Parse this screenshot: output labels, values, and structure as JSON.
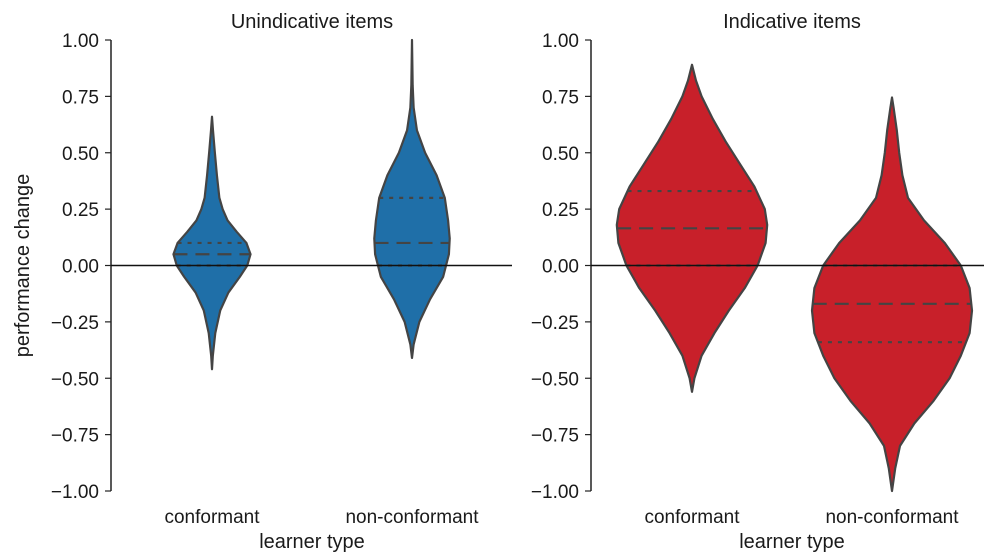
{
  "chart_data": [
    {
      "type": "violin",
      "title": "Unindicative items",
      "xlabel": "learner type",
      "ylabel": "performance change",
      "ylim": [
        -1.0,
        1.0
      ],
      "yticks": [
        "1.00",
        "0.75",
        "0.50",
        "0.25",
        "0.00",
        "−0.25",
        "−0.50",
        "−0.75",
        "−1.00"
      ],
      "ytick_values": [
        1.0,
        0.75,
        0.5,
        0.25,
        0.0,
        -0.25,
        -0.5,
        -0.75,
        -1.0
      ],
      "categories": [
        "conformant",
        "non-conformant"
      ],
      "color": "#1f6fa8",
      "zero_line": true,
      "violins": [
        {
          "category": "conformant",
          "min": -0.46,
          "max": 0.66,
          "quartiles": {
            "q1": 0.0,
            "median": 0.05,
            "q3": 0.1
          },
          "density": [
            [
              -0.46,
              0.0
            ],
            [
              -0.4,
              0.01
            ],
            [
              -0.3,
              0.04
            ],
            [
              -0.2,
              0.1
            ],
            [
              -0.12,
              0.2
            ],
            [
              -0.05,
              0.34
            ],
            [
              0.0,
              0.43
            ],
            [
              0.05,
              0.47
            ],
            [
              0.1,
              0.42
            ],
            [
              0.15,
              0.3
            ],
            [
              0.2,
              0.19
            ],
            [
              0.25,
              0.13
            ],
            [
              0.3,
              0.09
            ],
            [
              0.4,
              0.06
            ],
            [
              0.5,
              0.035
            ],
            [
              0.6,
              0.012
            ],
            [
              0.66,
              0.0
            ]
          ]
        },
        {
          "category": "non-conformant",
          "min": -0.41,
          "max": 1.0,
          "quartiles": {
            "q1": 0.0,
            "median": 0.1,
            "q3": 0.3
          },
          "density": [
            [
              -0.41,
              0.0
            ],
            [
              -0.35,
              0.02
            ],
            [
              -0.25,
              0.09
            ],
            [
              -0.15,
              0.22
            ],
            [
              -0.05,
              0.38
            ],
            [
              0.05,
              0.45
            ],
            [
              0.12,
              0.46
            ],
            [
              0.2,
              0.44
            ],
            [
              0.3,
              0.4
            ],
            [
              0.4,
              0.3
            ],
            [
              0.5,
              0.16
            ],
            [
              0.6,
              0.06
            ],
            [
              0.7,
              0.02
            ],
            [
              0.8,
              0.008
            ],
            [
              0.9,
              0.004
            ],
            [
              1.0,
              0.0
            ]
          ]
        }
      ]
    },
    {
      "type": "violin",
      "title": "Indicative items",
      "xlabel": "learner type",
      "ylabel": "",
      "ylim": [
        -1.0,
        1.0
      ],
      "yticks": [
        "1.00",
        "0.75",
        "0.50",
        "0.25",
        "0.00",
        "−0.25",
        "−0.50",
        "−0.75",
        "−1.00"
      ],
      "ytick_values": [
        1.0,
        0.75,
        0.5,
        0.25,
        0.0,
        -0.25,
        -0.5,
        -0.75,
        -1.0
      ],
      "categories": [
        "conformant",
        "non-conformant"
      ],
      "color": "#c8202a",
      "zero_line": true,
      "violins": [
        {
          "category": "conformant",
          "min": -0.56,
          "max": 0.89,
          "quartiles": {
            "q1": 0.0,
            "median": 0.165,
            "q3": 0.33
          },
          "density": [
            [
              -0.56,
              0.0
            ],
            [
              -0.5,
              0.03
            ],
            [
              -0.4,
              0.12
            ],
            [
              -0.3,
              0.28
            ],
            [
              -0.2,
              0.46
            ],
            [
              -0.1,
              0.66
            ],
            [
              0.0,
              0.82
            ],
            [
              0.1,
              0.92
            ],
            [
              0.18,
              0.94
            ],
            [
              0.25,
              0.91
            ],
            [
              0.35,
              0.78
            ],
            [
              0.45,
              0.6
            ],
            [
              0.55,
              0.42
            ],
            [
              0.65,
              0.26
            ],
            [
              0.75,
              0.12
            ],
            [
              0.82,
              0.05
            ],
            [
              0.89,
              0.0
            ]
          ]
        },
        {
          "category": "non-conformant",
          "min": -1.0,
          "max": 0.745,
          "quartiles": {
            "q1": -0.34,
            "median": -0.17,
            "q3": 0.0
          },
          "density": [
            [
              -1.0,
              0.0
            ],
            [
              -0.9,
              0.04
            ],
            [
              -0.8,
              0.1
            ],
            [
              -0.7,
              0.28
            ],
            [
              -0.6,
              0.52
            ],
            [
              -0.5,
              0.72
            ],
            [
              -0.4,
              0.86
            ],
            [
              -0.3,
              0.97
            ],
            [
              -0.2,
              1.0
            ],
            [
              -0.1,
              0.97
            ],
            [
              0.0,
              0.86
            ],
            [
              0.1,
              0.66
            ],
            [
              0.2,
              0.4
            ],
            [
              0.3,
              0.2
            ],
            [
              0.4,
              0.13
            ],
            [
              0.5,
              0.09
            ],
            [
              0.6,
              0.06
            ],
            [
              0.7,
              0.02
            ],
            [
              0.745,
              0.0
            ]
          ]
        }
      ]
    }
  ]
}
